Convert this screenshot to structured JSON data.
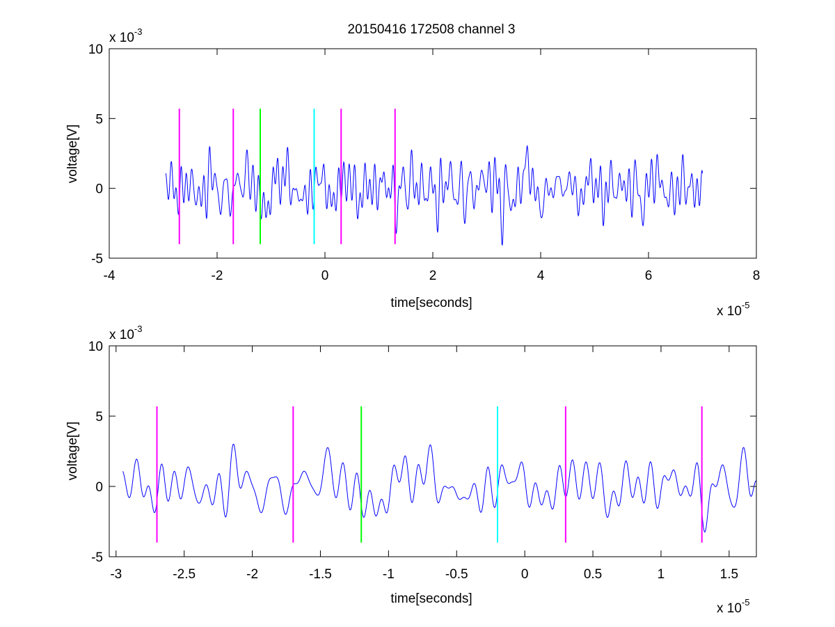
{
  "figure": {
    "title": "20150416 172508 channel 3"
  },
  "chart_data": [
    {
      "type": "line",
      "title": "20150416 172508 channel 3",
      "xlabel": "time[seconds]",
      "ylabel": "voltage[V]",
      "x_exponent_label": {
        "base": "x 10",
        "exp": "-5"
      },
      "y_exponent_label": {
        "base": "x 10",
        "exp": "-3"
      },
      "xlim": [
        -4,
        8
      ],
      "ylim": [
        -5,
        10
      ],
      "xticks": [
        "-4",
        "-2",
        "0",
        "2",
        "4",
        "6",
        "8"
      ],
      "yticks": [
        "-5",
        "0",
        "5",
        "10"
      ],
      "grid": false,
      "series": [
        {
          "color": "#0000ff",
          "x_range": [
            -2.95,
            7.0
          ],
          "amplitude": 1.1,
          "seed": 1
        }
      ],
      "markers": [
        {
          "x": -2.7,
          "color": "#ff00ff",
          "y_range": [
            -4,
            5.7
          ]
        },
        {
          "x": -1.7,
          "color": "#ff00ff",
          "y_range": [
            -4,
            5.7
          ]
        },
        {
          "x": -1.2,
          "color": "#00ff00",
          "y_range": [
            -4,
            5.7
          ]
        },
        {
          "x": -0.2,
          "color": "#00ffff",
          "y_range": [
            -4,
            5.7
          ]
        },
        {
          "x": 0.3,
          "color": "#ff00ff",
          "y_range": [
            -4,
            5.7
          ]
        },
        {
          "x": 1.3,
          "color": "#ff00ff",
          "y_range": [
            -4,
            5.7
          ]
        }
      ]
    },
    {
      "type": "line",
      "title": "",
      "xlabel": "time[seconds]",
      "ylabel": "voltage[V]",
      "x_exponent_label": {
        "base": "x 10",
        "exp": "-5"
      },
      "y_exponent_label": {
        "base": "x 10",
        "exp": "-3"
      },
      "xlim": [
        -3.05,
        1.7
      ],
      "ylim": [
        -5,
        10
      ],
      "xticks": [
        "-3",
        "-2.5",
        "-2",
        "-1.5",
        "-1",
        "-0.5",
        "0",
        "0.5",
        "1",
        "1.5"
      ],
      "yticks": [
        "-5",
        "0",
        "5",
        "10"
      ],
      "grid": false,
      "series": [
        {
          "color": "#0000ff",
          "x_range": [
            -2.95,
            1.7
          ],
          "amplitude": 1.1,
          "seed": 1
        }
      ],
      "markers": [
        {
          "x": -2.7,
          "color": "#ff00ff",
          "y_range": [
            -4,
            5.7
          ]
        },
        {
          "x": -1.7,
          "color": "#ff00ff",
          "y_range": [
            -4,
            5.7
          ]
        },
        {
          "x": -1.2,
          "color": "#00ff00",
          "y_range": [
            -4,
            5.7
          ]
        },
        {
          "x": -0.2,
          "color": "#00ffff",
          "y_range": [
            -4,
            5.7
          ]
        },
        {
          "x": 0.3,
          "color": "#ff00ff",
          "y_range": [
            -4,
            5.7
          ]
        },
        {
          "x": 1.3,
          "color": "#ff00ff",
          "y_range": [
            -4,
            5.7
          ]
        }
      ]
    }
  ]
}
